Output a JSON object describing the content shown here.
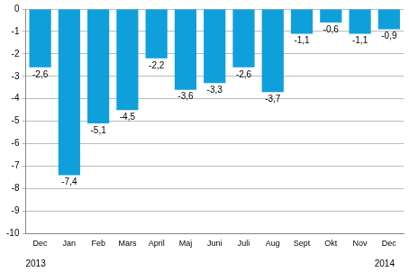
{
  "chart_data": {
    "type": "bar",
    "categories": [
      "Dec",
      "Jan",
      "Feb",
      "Mars",
      "April",
      "Maj",
      "Juni",
      "Juli",
      "Aug",
      "Sept",
      "Okt",
      "Nov",
      "Dec"
    ],
    "values": [
      -2.6,
      -7.4,
      -5.1,
      -4.5,
      -2.2,
      -3.6,
      -3.3,
      -2.6,
      -3.7,
      -1.1,
      -0.6,
      -1.1,
      -0.9
    ],
    "value_labels": [
      "-2,6",
      "-7,4",
      "-5,1",
      "-4,5",
      "-2,2",
      "-3,6",
      "-3,3",
      "-2,6",
      "-3,7",
      "-1,1",
      "-0,6",
      "-1,1",
      "-0,9"
    ],
    "data_labels": true,
    "color": "#0fa0dc",
    "ylim": [
      -10,
      0
    ],
    "yticks": [
      -10,
      -9,
      -8,
      -7,
      -6,
      -5,
      -4,
      -3,
      -2,
      -1,
      0
    ],
    "grid": true,
    "annotations": [
      {
        "text": "2013",
        "category_index": 0
      },
      {
        "text": "2014",
        "category_index": 12
      }
    ]
  }
}
